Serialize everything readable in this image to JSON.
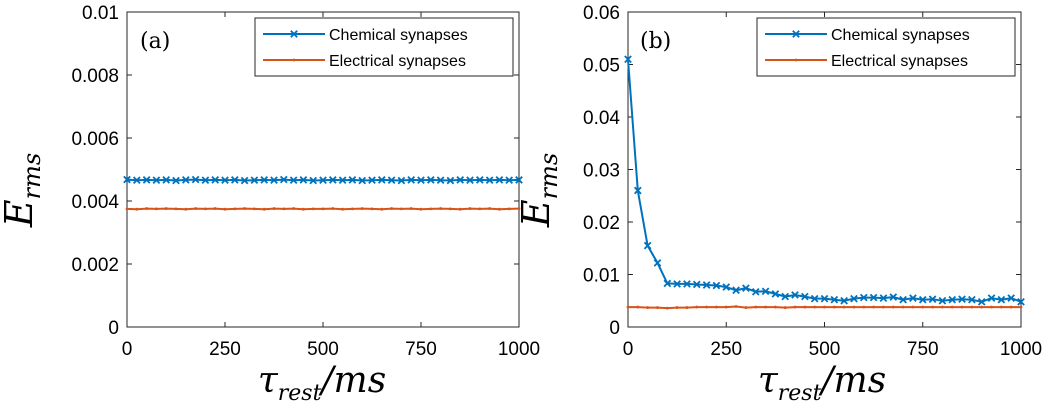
{
  "chart_data": [
    {
      "type": "line",
      "panel_label": "(a)",
      "ylabel_main": "E",
      "ylabel_sub": "rms",
      "xlabel_main": "τ",
      "xlabel_sub": "rest",
      "xlabel_unit": "/ms",
      "xlim": [
        0,
        1000
      ],
      "ylim": [
        0,
        0.01
      ],
      "xticks": [
        0,
        250,
        500,
        750,
        1000
      ],
      "xtick_labels": [
        "0",
        "250",
        "500",
        "750",
        "1000"
      ],
      "yticks": [
        0,
        0.002,
        0.004,
        0.006,
        0.008,
        0.01
      ],
      "ytick_labels": [
        "0",
        "0.002",
        "0.004",
        "0.006",
        "0.008",
        "0.01"
      ],
      "grid": false,
      "legend_position": "top-right",
      "x": [
        0,
        25,
        50,
        75,
        100,
        125,
        150,
        175,
        200,
        225,
        250,
        275,
        300,
        325,
        350,
        375,
        400,
        425,
        450,
        475,
        500,
        525,
        550,
        575,
        600,
        625,
        650,
        675,
        700,
        725,
        750,
        775,
        800,
        825,
        850,
        875,
        900,
        925,
        950,
        975,
        1000
      ],
      "series": [
        {
          "name": "Chemical synapses",
          "color": "#0072BD",
          "marker": "x",
          "values": [
            0.00468,
            0.00466,
            0.00467,
            0.00466,
            0.00467,
            0.00465,
            0.00467,
            0.00468,
            0.00466,
            0.00467,
            0.00466,
            0.00467,
            0.00465,
            0.00466,
            0.00467,
            0.00466,
            0.00468,
            0.00466,
            0.00467,
            0.00465,
            0.00466,
            0.00467,
            0.00466,
            0.00467,
            0.00465,
            0.00466,
            0.00467,
            0.00466,
            0.00465,
            0.00467,
            0.00466,
            0.00467,
            0.00466,
            0.00465,
            0.00467,
            0.00466,
            0.00467,
            0.00466,
            0.00467,
            0.00466,
            0.00467
          ]
        },
        {
          "name": "Electrical synapses",
          "color": "#D95319",
          "marker": ".",
          "values": [
            0.00375,
            0.00374,
            0.00376,
            0.00375,
            0.00376,
            0.00375,
            0.00374,
            0.00376,
            0.00375,
            0.00376,
            0.00374,
            0.00375,
            0.00376,
            0.00375,
            0.00374,
            0.00376,
            0.00375,
            0.00376,
            0.00374,
            0.00375,
            0.00375,
            0.00376,
            0.00374,
            0.00375,
            0.00376,
            0.00375,
            0.00374,
            0.00376,
            0.00375,
            0.00376,
            0.00374,
            0.00375,
            0.00376,
            0.00375,
            0.00374,
            0.00376,
            0.00375,
            0.00376,
            0.00374,
            0.00375,
            0.00376
          ]
        }
      ]
    },
    {
      "type": "line",
      "panel_label": "(b)",
      "ylabel_main": "E",
      "ylabel_sub": "rms",
      "xlabel_main": "τ",
      "xlabel_sub": "rest",
      "xlabel_unit": "/ms",
      "xlim": [
        0,
        1000
      ],
      "ylim": [
        0,
        0.06
      ],
      "xticks": [
        0,
        250,
        500,
        750,
        1000
      ],
      "xtick_labels": [
        "0",
        "250",
        "500",
        "750",
        "1000"
      ],
      "yticks": [
        0,
        0.01,
        0.02,
        0.03,
        0.04,
        0.05,
        0.06
      ],
      "ytick_labels": [
        "0",
        "0.01",
        "0.02",
        "0.03",
        "0.04",
        "0.05",
        "0.06"
      ],
      "grid": false,
      "legend_position": "top-right",
      "x": [
        0,
        25,
        50,
        75,
        100,
        125,
        150,
        175,
        200,
        225,
        250,
        275,
        300,
        325,
        350,
        375,
        400,
        425,
        450,
        475,
        500,
        525,
        550,
        575,
        600,
        625,
        650,
        675,
        700,
        725,
        750,
        775,
        800,
        825,
        850,
        875,
        900,
        925,
        950,
        975,
        1000
      ],
      "series": [
        {
          "name": "Chemical synapses",
          "color": "#0072BD",
          "marker": "x",
          "values": [
            0.051,
            0.026,
            0.0155,
            0.0122,
            0.0083,
            0.0082,
            0.0082,
            0.0081,
            0.008,
            0.0079,
            0.0076,
            0.007,
            0.0074,
            0.0067,
            0.0068,
            0.0063,
            0.0058,
            0.0061,
            0.0058,
            0.0054,
            0.0054,
            0.0052,
            0.005,
            0.0054,
            0.0056,
            0.0056,
            0.0055,
            0.0057,
            0.0052,
            0.0055,
            0.0052,
            0.0053,
            0.005,
            0.0052,
            0.0053,
            0.0052,
            0.0048,
            0.0055,
            0.0052,
            0.0055,
            0.0048
          ]
        },
        {
          "name": "Electrical synapses",
          "color": "#D95319",
          "marker": ".",
          "values": [
            0.0038,
            0.0038,
            0.0037,
            0.0037,
            0.0036,
            0.0037,
            0.0037,
            0.0038,
            0.0038,
            0.0038,
            0.0038,
            0.0039,
            0.0037,
            0.0038,
            0.0038,
            0.0038,
            0.0037,
            0.0038,
            0.0038,
            0.0038,
            0.0038,
            0.0038,
            0.0038,
            0.0038,
            0.0038,
            0.0038,
            0.0038,
            0.0038,
            0.0038,
            0.0038,
            0.0038,
            0.0038,
            0.0038,
            0.0038,
            0.0038,
            0.0038,
            0.0038,
            0.0038,
            0.0038,
            0.0038,
            0.0038
          ]
        }
      ]
    }
  ]
}
